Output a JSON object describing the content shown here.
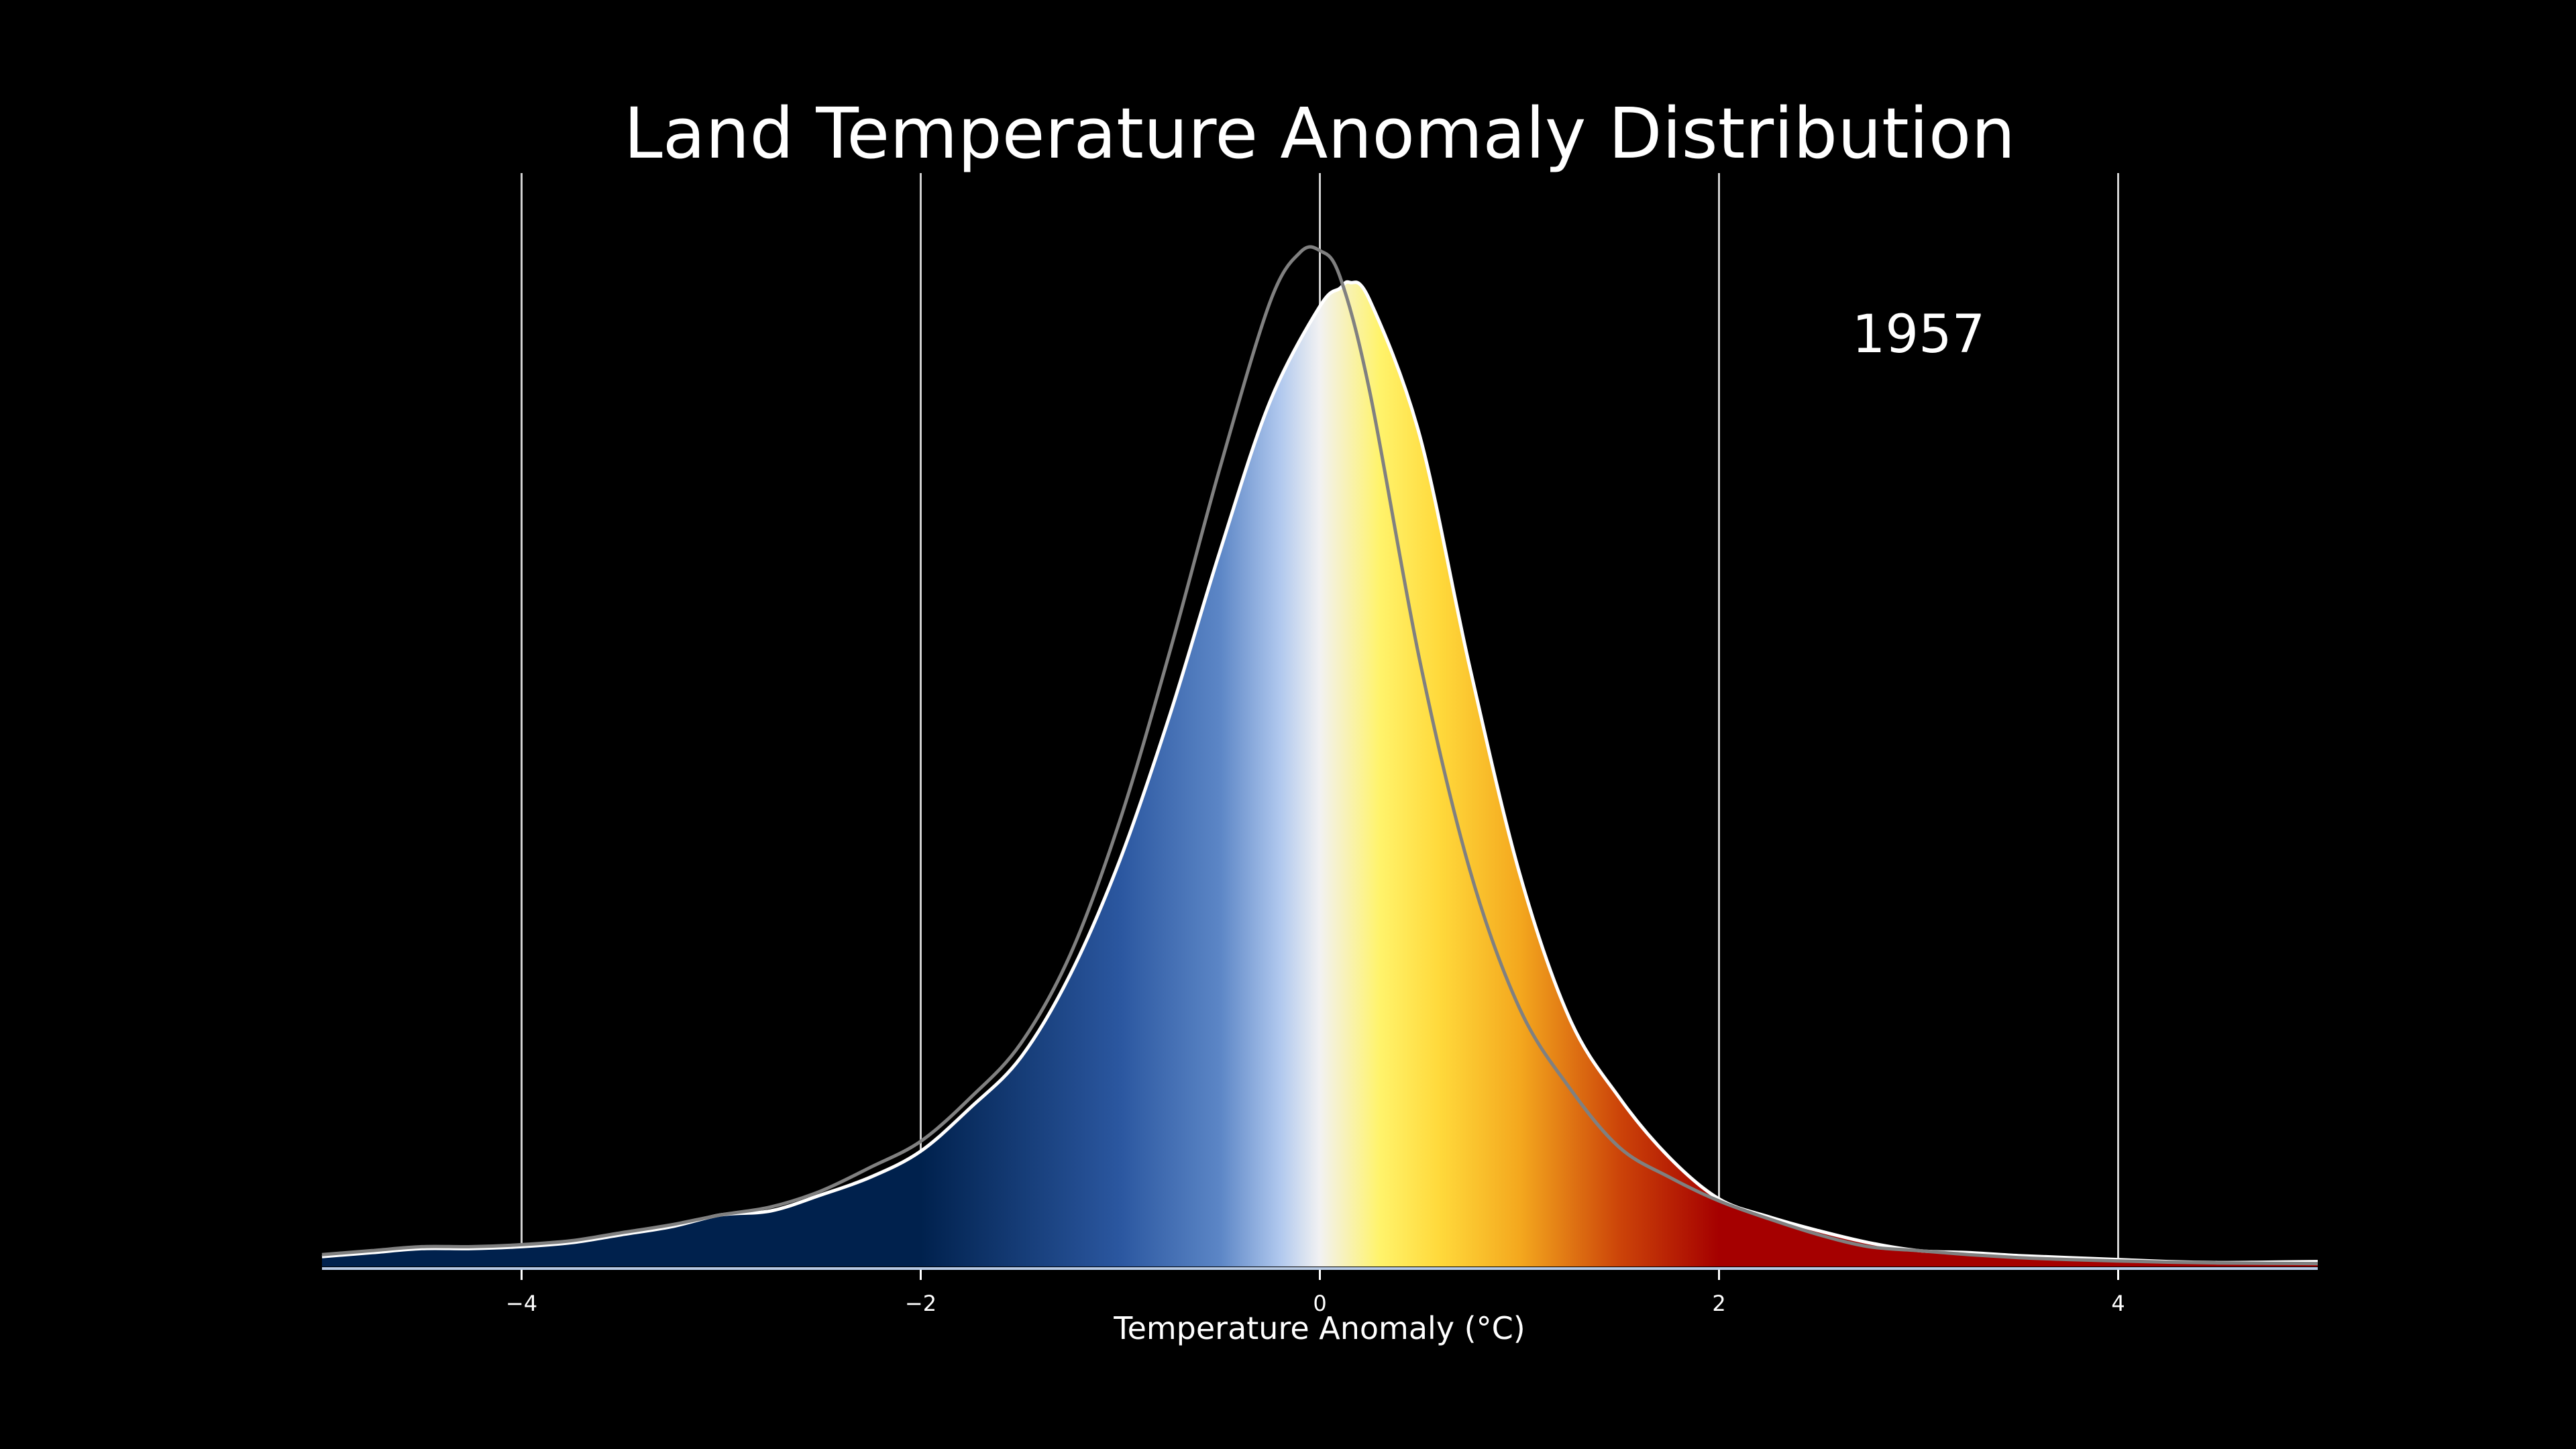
{
  "chart_data": {
    "type": "area",
    "title": "Land Temperature Anomaly Distribution",
    "annotation": "1957",
    "xlabel": "Temperature Anomaly (°C)",
    "ylabel": "",
    "xlim": [
      -5,
      5
    ],
    "ylim": [
      0,
      0.55
    ],
    "x_ticks": [
      -4,
      -2,
      0,
      2,
      4
    ],
    "x_tick_labels": [
      "−4",
      "−2",
      "0",
      "2",
      "4"
    ],
    "grid": "vertical lines at x ticks",
    "series": [
      {
        "kind": "current-distribution-filled",
        "color": "#ffffff",
        "x": [
          -5.0,
          -4.75,
          -4.5,
          -4.25,
          -4.0,
          -3.75,
          -3.5,
          -3.25,
          -3.0,
          -2.75,
          -2.5,
          -2.25,
          -2.0,
          -1.75,
          -1.5,
          -1.25,
          -1.0,
          -0.75,
          -0.5,
          -0.25,
          0.0,
          0.1,
          0.15,
          0.25,
          0.5,
          0.75,
          1.0,
          1.25,
          1.5,
          1.75,
          2.0,
          2.25,
          2.5,
          2.75,
          3.0,
          3.25,
          3.5,
          3.75,
          4.0,
          4.25,
          4.5,
          4.75,
          5.0
        ],
        "y": [
          0.005,
          0.007,
          0.009,
          0.009,
          0.01,
          0.012,
          0.016,
          0.02,
          0.026,
          0.028,
          0.036,
          0.045,
          0.058,
          0.08,
          0.105,
          0.147,
          0.205,
          0.278,
          0.36,
          0.435,
          0.483,
          0.492,
          0.495,
          0.486,
          0.418,
          0.302,
          0.198,
          0.125,
          0.085,
          0.055,
          0.034,
          0.025,
          0.018,
          0.012,
          0.008,
          0.007,
          0.0055,
          0.0045,
          0.0035,
          0.0025,
          0.002,
          0.0022,
          0.0025
        ]
      },
      {
        "kind": "baseline-distribution-line",
        "color": "#808080",
        "x": [
          -5.0,
          -4.75,
          -4.5,
          -4.25,
          -4.0,
          -3.75,
          -3.5,
          -3.25,
          -3.0,
          -2.75,
          -2.5,
          -2.25,
          -2.0,
          -1.75,
          -1.5,
          -1.25,
          -1.0,
          -0.75,
          -0.5,
          -0.25,
          -0.1,
          0.0,
          0.1,
          0.25,
          0.5,
          0.75,
          1.0,
          1.25,
          1.5,
          1.75,
          2.0,
          2.25,
          2.5,
          2.75,
          3.0,
          3.25,
          3.5,
          3.75,
          4.0,
          4.25,
          4.5,
          4.75,
          5.0
        ],
        "y": [
          0.006,
          0.008,
          0.01,
          0.01,
          0.011,
          0.013,
          0.017,
          0.021,
          0.026,
          0.03,
          0.038,
          0.05,
          0.063,
          0.085,
          0.112,
          0.157,
          0.225,
          0.31,
          0.402,
          0.485,
          0.51,
          0.511,
          0.498,
          0.44,
          0.305,
          0.2,
          0.13,
          0.09,
          0.06,
          0.045,
          0.033,
          0.024,
          0.016,
          0.01,
          0.008,
          0.006,
          0.0045,
          0.0035,
          0.0028,
          0.0022,
          0.0018,
          0.0016,
          0.0015
        ]
      }
    ],
    "fill_colormap": [
      {
        "x": -5.0,
        "color": "#00214d"
      },
      {
        "x": -2.0,
        "color": "#00214d"
      },
      {
        "x": -1.0,
        "color": "#2b57a0"
      },
      {
        "x": -0.5,
        "color": "#5c86c6"
      },
      {
        "x": -0.2,
        "color": "#b0c8ee"
      },
      {
        "x": 0.0,
        "color": "#f2f2f2"
      },
      {
        "x": 0.3,
        "color": "#fff36b"
      },
      {
        "x": 0.6,
        "color": "#ffd93b"
      },
      {
        "x": 1.0,
        "color": "#f4a81e"
      },
      {
        "x": 1.5,
        "color": "#cc4409"
      },
      {
        "x": 2.0,
        "color": "#a50000"
      },
      {
        "x": 5.0,
        "color": "#a50000"
      }
    ]
  },
  "colors": {
    "background": "#000000",
    "text": "#ffffff",
    "grid": "#d0d0d0",
    "axis_line": "#b8cbe6"
  }
}
